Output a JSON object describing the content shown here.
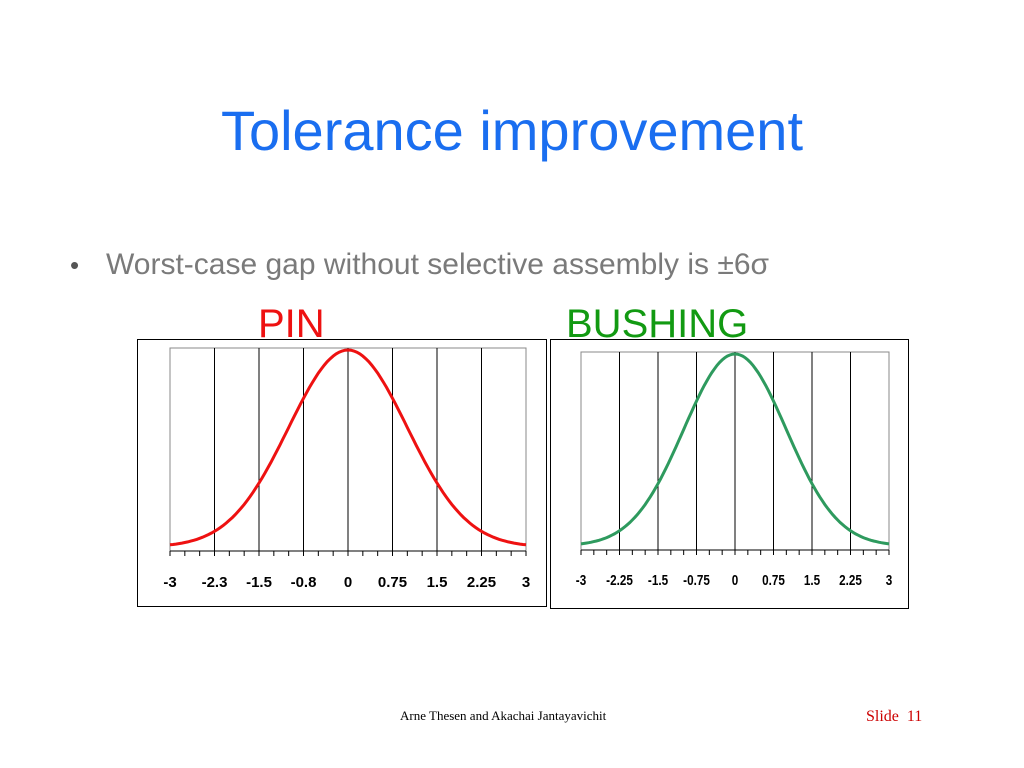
{
  "title": "Tolerance improvement",
  "bullet": {
    "marker": "•",
    "text": "Worst-case gap without selective assembly is ±6σ"
  },
  "labels": {
    "pin": "PIN",
    "bushing": "BUSHING"
  },
  "colors": {
    "title": "#1a6ef0",
    "pin": "#ee1111",
    "bushing": "#2e9a5e",
    "bullet": "#7a7a7a"
  },
  "footer": {
    "credit": "Arne Thesen and Akachai Jantayavichit",
    "slide_label": "Slide",
    "slide_number": "11"
  },
  "chart_data": [
    {
      "type": "line",
      "series": [
        {
          "color": "#ee1111",
          "distribution": "normal",
          "mean": 0,
          "sd": 1
        }
      ],
      "x_ticks": [
        "-3",
        "-2.3",
        "-1.5",
        "-0.8",
        "0",
        "0.75",
        "1.5",
        "2.25",
        "3"
      ],
      "xlim": [
        -3,
        3
      ],
      "grid": true
    },
    {
      "type": "line",
      "series": [
        {
          "color": "#2e9a5e",
          "distribution": "normal",
          "mean": 0,
          "sd": 1
        }
      ],
      "x_ticks": [
        "-3",
        "-2.25",
        "-1.5",
        "-0.75",
        "0",
        "0.75",
        "1.5",
        "2.25",
        "3"
      ],
      "xlim": [
        -3,
        3
      ],
      "grid": true
    }
  ]
}
